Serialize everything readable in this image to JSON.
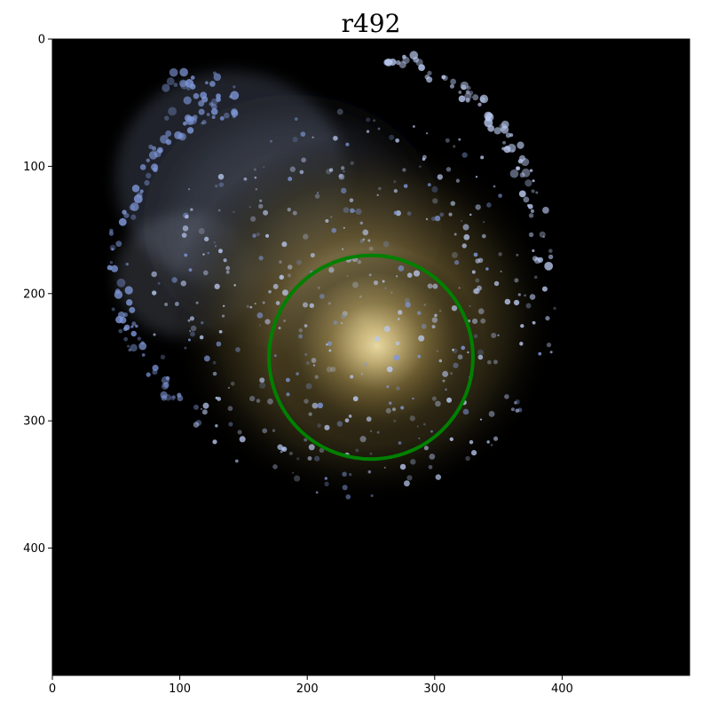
{
  "title": "r492",
  "image": {
    "description_colors": {
      "background": "#000000",
      "core": "#e8d9a0",
      "halo": "#6b5a2e",
      "clumps": "#b9c8ee",
      "blue_clumps": "#7f97d8"
    }
  },
  "axes": {
    "xlim": [
      0,
      500
    ],
    "ylim": [
      500,
      0
    ],
    "x_ticks": [
      "0",
      "100",
      "200",
      "300",
      "400"
    ],
    "y_ticks": [
      "0",
      "100",
      "200",
      "300",
      "400"
    ],
    "x_tick_values": [
      0,
      100,
      200,
      300,
      400
    ],
    "y_tick_values": [
      0,
      100,
      200,
      300,
      400
    ]
  },
  "aperture": {
    "color": "#008000",
    "center": [
      250,
      250
    ],
    "radius": 80
  }
}
